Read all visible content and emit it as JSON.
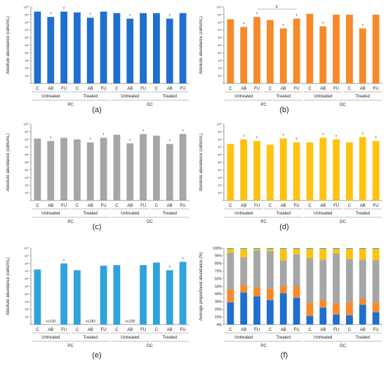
{
  "colors": {
    "blue": "#1f6fce",
    "orange": "#f58a2a",
    "gray": "#a6a6a6",
    "yellow": "#ffc20e",
    "lightblue": "#2ea3dc",
    "axis": "#7f7f7f",
    "text": "#222222"
  },
  "shared": {
    "categories": [
      "C",
      "AB",
      "FU",
      "C",
      "AB",
      "FU",
      "C",
      "AB",
      "FU",
      "C",
      "AB",
      "FU"
    ],
    "treatment_groups": [
      "Untreated",
      "Treated",
      "Untreated",
      "Treated"
    ],
    "condition_groups": [
      "PC",
      "DC"
    ],
    "log_tick_labels": [
      "10^1",
      "10^2",
      "10^3",
      "10^4",
      "10^5",
      "10^6",
      "10^7",
      "10^8",
      "10^9",
      "10^10"
    ],
    "pct_tick_labels": [
      "0%",
      "10%",
      "20%",
      "30%",
      "40%",
      "50%",
      "60%",
      "70%",
      "80%",
      "90%",
      "100%"
    ]
  },
  "chart_data": [
    {
      "panel": "(a)",
      "type": "bar",
      "ylabel": "Absolute abundance (cells/mL)",
      "yscale": "log",
      "ylim": [
        1,
        10000000000
      ],
      "color": "blue",
      "values": [
        2500000000.0,
        500000000.0,
        2500000000.0,
        2000000000.0,
        400000000.0,
        2500000000.0,
        1600000000.0,
        300000000.0,
        1600000000.0,
        1600000000.0,
        300000000.0,
        1600000000.0
      ],
      "significant": [
        false,
        true,
        true,
        false,
        true,
        false,
        false,
        true,
        false,
        false,
        true,
        false
      ]
    },
    {
      "panel": "(b)",
      "type": "bar",
      "ylabel": "Absolute abundance (cells/mL)",
      "yscale": "log",
      "ylim": [
        1,
        10000000000
      ],
      "color": "orange",
      "values": [
        250000000.0,
        25000000.0,
        500000000.0,
        200000000.0,
        16000000.0,
        300000000.0,
        1300000000.0,
        30000000.0,
        1000000000.0,
        1000000000.0,
        16000000.0,
        1000000000.0
      ],
      "significant": [
        false,
        true,
        true,
        false,
        true,
        true,
        false,
        true,
        false,
        false,
        true,
        false
      ],
      "annotation": {
        "symbol": "#",
        "between": [
          2,
          5
        ]
      }
    },
    {
      "panel": "(c)",
      "type": "bar",
      "ylabel": "Absolute abundance (cells/mL)",
      "yscale": "log",
      "ylim": [
        1,
        10000000000
      ],
      "color": "gray",
      "values": [
        130000000.0,
        60000000.0,
        160000000.0,
        100000000.0,
        40000000.0,
        160000000.0,
        400000000.0,
        30000000.0,
        500000000.0,
        300000000.0,
        25000000.0,
        500000000.0
      ],
      "significant": [
        false,
        true,
        false,
        false,
        true,
        true,
        false,
        true,
        true,
        false,
        true,
        true
      ]
    },
    {
      "panel": "(d)",
      "type": "bar",
      "ylabel": "Absolute abundance (cells/mL)",
      "yscale": "log",
      "ylim": [
        1,
        10000000000
      ],
      "color": "yellow",
      "values": [
        25000000.0,
        100000000.0,
        60000000.0,
        20000000.0,
        130000000.0,
        40000000.0,
        40000000.0,
        160000000.0,
        100000000.0,
        40000000.0,
        200000000.0,
        60000000.0
      ],
      "significant": [
        false,
        true,
        true,
        false,
        true,
        true,
        false,
        true,
        true,
        false,
        true,
        true
      ]
    },
    {
      "panel": "(e)",
      "type": "bar",
      "ylabel": "Absolute abundance (cells/mL)",
      "yscale": "log",
      "ylim": [
        1,
        10000000000
      ],
      "color": "lightblue",
      "values": [
        16000000.0,
        null,
        100000000.0,
        13000000.0,
        null,
        50000000.0,
        60000000.0,
        null,
        60000000.0,
        130000000.0,
        13000000.0,
        160000000.0
      ],
      "below_lod": [
        false,
        true,
        false,
        false,
        true,
        false,
        false,
        true,
        false,
        false,
        false,
        false
      ],
      "lod_label": "<LOD",
      "significant": [
        false,
        false,
        true,
        false,
        false,
        false,
        false,
        false,
        false,
        false,
        true,
        true
      ]
    },
    {
      "panel": "(f)",
      "type": "bar",
      "stacked": true,
      "ylabel": "Average proportional abundance (%)",
      "ylim": [
        0,
        100
      ],
      "series": [
        {
          "color": "blue",
          "values": [
            29,
            42,
            37,
            32,
            41,
            35,
            11,
            22,
            13,
            12,
            26,
            16
          ]
        },
        {
          "color": "orange",
          "values": [
            17,
            10,
            12,
            15,
            10,
            15,
            18,
            10,
            15,
            17,
            8,
            13
          ]
        },
        {
          "color": "gray",
          "values": [
            48,
            36,
            48,
            49,
            33,
            42,
            58,
            53,
            65,
            57,
            51,
            55
          ]
        },
        {
          "color": "yellow",
          "values": [
            5,
            11,
            2,
            3,
            15,
            7,
            12,
            14,
            6,
            13,
            14,
            15
          ]
        },
        {
          "color": "lightblue",
          "values": [
            1,
            1,
            1,
            1,
            1,
            1,
            1,
            1,
            1,
            1,
            1,
            1
          ]
        }
      ]
    }
  ]
}
